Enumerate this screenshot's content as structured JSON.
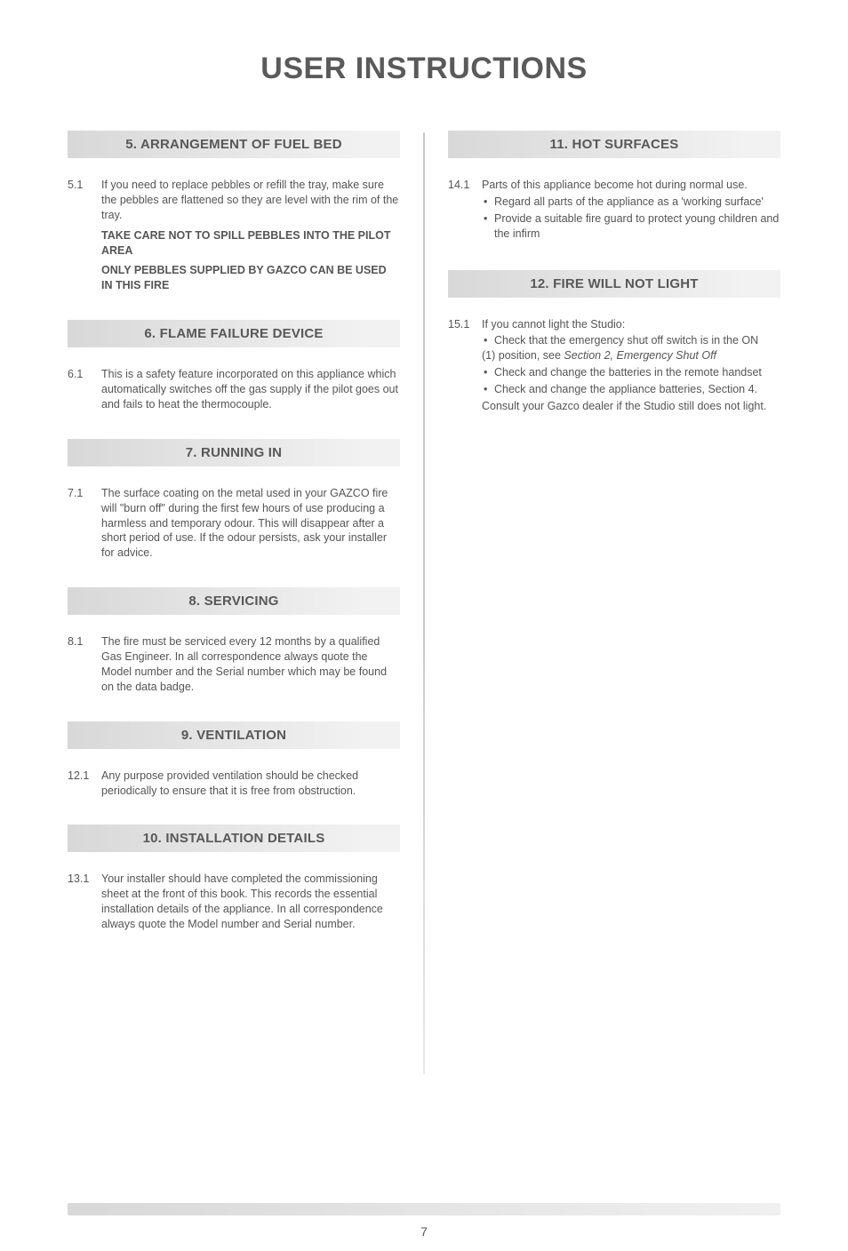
{
  "title": "USER INSTRUCTIONS",
  "pageNumber": "7",
  "left": {
    "s5": {
      "header": "5. ARRANGEMENT OF FUEL BED",
      "num": "5.1",
      "text": "If you need to replace pebbles or refill the tray, make sure the pebbles are flattened so they are level with the rim of the tray.",
      "bold1": "TAKE CARE NOT TO SPILL PEBBLES INTO THE PILOT AREA",
      "bold2": "ONLY PEBBLES SUPPLIED BY GAZCO CAN BE USED IN THIS FIRE"
    },
    "s6": {
      "header": "6. FLAME FAILURE DEVICE",
      "num": "6.1",
      "text": "This is a safety feature incorporated on this appliance which automatically switches off the gas supply if the pilot goes out and fails to heat the thermocouple."
    },
    "s7": {
      "header": "7. RUNNING IN",
      "num": "7.1",
      "text": "The surface coating on the metal used in your GAZCO fire will \"burn off\" during the first few hours of use producing a harmless and temporary odour. This will disappear after a short period of use. If the odour persists, ask your installer for advice."
    },
    "s8": {
      "header": "8. SERVICING",
      "num": "8.1",
      "text": "The fire must be serviced every 12 months by a qualified Gas Engineer. In all correspondence always quote the Model number and the Serial number which may be found on the data badge."
    },
    "s9": {
      "header": "9. VENTILATION",
      "num": "12.1",
      "text": "Any purpose provided ventilation should be checked periodically to ensure that it is free from obstruction."
    },
    "s10": {
      "header": "10. INSTALLATION DETAILS",
      "num": "13.1",
      "text": "Your installer should have completed the commissioning sheet at the front of this book. This records the essential installation details of the appliance. In all correspondence always quote the Model number and Serial number."
    }
  },
  "right": {
    "s11": {
      "header": "11. HOT SURFACES",
      "num": "14.1",
      "text": "Parts of this appliance become hot during normal use.",
      "b1": "Regard all parts of the appliance as a 'working surface'",
      "b2": "Provide a suitable fire guard to protect young children and the infirm"
    },
    "s12": {
      "header": "12. FIRE WILL NOT LIGHT",
      "num": "15.1",
      "text": "If you cannot light the Studio:",
      "b1a": "Check that the emergency shut off switch is in the ON",
      "b1b": "(1) position, see ",
      "b1c": "Section 2, Emergency Shut Off",
      "b2": "Check and change the batteries in the remote handset",
      "b3": "Check and change the appliance batteries, Section 4.",
      "tail": "Consult your Gazco dealer if the Studio still does not light."
    }
  }
}
